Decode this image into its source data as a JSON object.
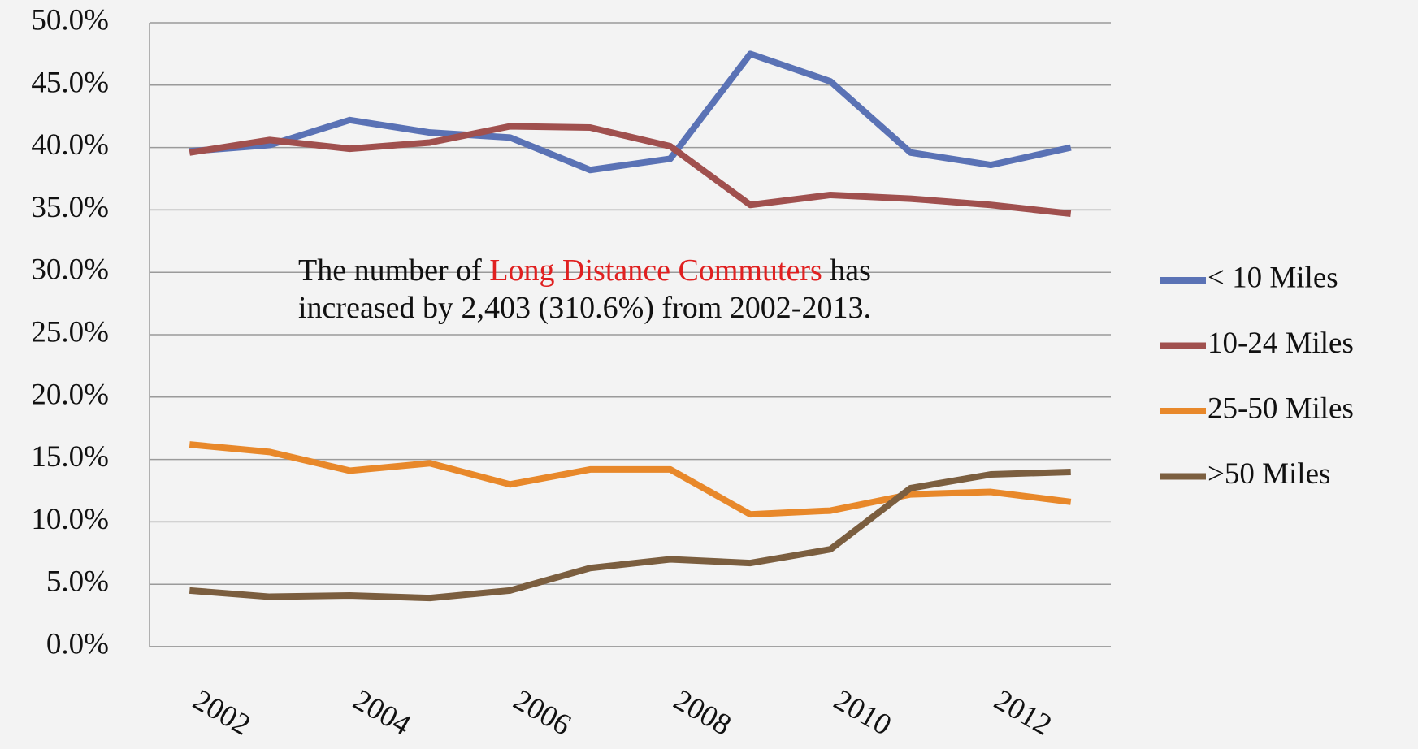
{
  "chart_data": {
    "type": "line",
    "x": [
      2002,
      2003,
      2004,
      2005,
      2006,
      2007,
      2008,
      2009,
      2010,
      2011,
      2012,
      2013
    ],
    "xlim": [
      2001.5,
      2013.5
    ],
    "xticks": [
      2002,
      2004,
      2006,
      2008,
      2010,
      2012
    ],
    "ylim": [
      0,
      50
    ],
    "yticks": [
      {
        "value": 0,
        "label": "0.0%"
      },
      {
        "value": 5,
        "label": "5.0%"
      },
      {
        "value": 10,
        "label": "10.0%"
      },
      {
        "value": 15,
        "label": "15.0%"
      },
      {
        "value": 20,
        "label": "20.0%"
      },
      {
        "value": 25,
        "label": "25.0%"
      },
      {
        "value": 30,
        "label": "30.0%"
      },
      {
        "value": 35,
        "label": "35.0%"
      },
      {
        "value": 40,
        "label": "40.0%"
      },
      {
        "value": 45,
        "label": "45.0%"
      },
      {
        "value": 50,
        "label": "50.0%"
      }
    ],
    "grid": true,
    "legend": "right",
    "series": [
      {
        "name": "< 10 Miles",
        "color": "#5a72b5",
        "values": [
          39.7,
          40.2,
          42.2,
          41.2,
          40.8,
          38.2,
          39.1,
          47.5,
          45.3,
          39.6,
          38.6,
          40.0
        ]
      },
      {
        "name": "10-24 Miles",
        "color": "#a0504e",
        "values": [
          39.6,
          40.6,
          39.9,
          40.4,
          41.7,
          41.6,
          40.1,
          35.4,
          36.2,
          35.9,
          35.4,
          34.7
        ]
      },
      {
        "name": "25-50 Miles",
        "color": "#e8882a",
        "values": [
          16.2,
          15.6,
          14.1,
          14.7,
          13.0,
          14.2,
          14.2,
          10.6,
          10.9,
          12.2,
          12.4,
          11.6
        ]
      },
      {
        "name": ">50 Miles",
        "color": "#7b5e3f",
        "values": [
          4.5,
          4.0,
          4.1,
          3.9,
          4.5,
          6.3,
          7.0,
          6.7,
          7.8,
          12.7,
          13.8,
          14.0
        ]
      }
    ],
    "annotation": {
      "before": "The number of ",
      "highlight": "Long Distance Commuters",
      "after": " has increased by 2,403 (310.6%) from 2002-2013.",
      "highlight_color": "#e02020"
    }
  }
}
